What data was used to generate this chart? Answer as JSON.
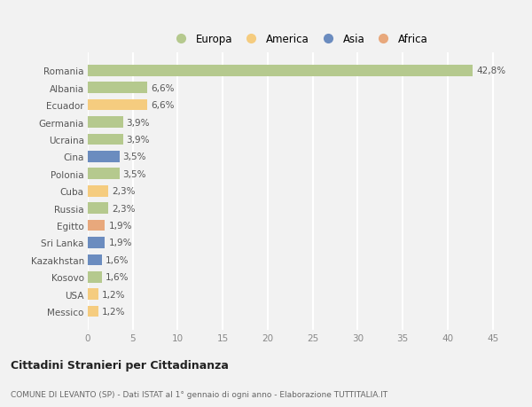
{
  "countries": [
    "Romania",
    "Albania",
    "Ecuador",
    "Germania",
    "Ucraina",
    "Cina",
    "Polonia",
    "Cuba",
    "Russia",
    "Egitto",
    "Sri Lanka",
    "Kazakhstan",
    "Kosovo",
    "USA",
    "Messico"
  ],
  "values": [
    42.8,
    6.6,
    6.6,
    3.9,
    3.9,
    3.5,
    3.5,
    2.3,
    2.3,
    1.9,
    1.9,
    1.6,
    1.6,
    1.2,
    1.2
  ],
  "labels": [
    "42,8%",
    "6,6%",
    "6,6%",
    "3,9%",
    "3,9%",
    "3,5%",
    "3,5%",
    "2,3%",
    "2,3%",
    "1,9%",
    "1,9%",
    "1,6%",
    "1,6%",
    "1,2%",
    "1,2%"
  ],
  "continents": [
    "Europa",
    "Europa",
    "America",
    "Europa",
    "Europa",
    "Asia",
    "Europa",
    "America",
    "Europa",
    "Africa",
    "Asia",
    "Asia",
    "Europa",
    "America",
    "America"
  ],
  "continent_colors": {
    "Europa": "#b5c98e",
    "America": "#f5cc7f",
    "Asia": "#6b8cbf",
    "Africa": "#e8a87c"
  },
  "legend_order": [
    "Europa",
    "America",
    "Asia",
    "Africa"
  ],
  "title": "Cittadini Stranieri per Cittadinanza",
  "subtitle": "COMUNE DI LEVANTO (SP) - Dati ISTAT al 1° gennaio di ogni anno - Elaborazione TUTTITALIA.IT",
  "xlim": [
    0,
    47
  ],
  "xticks": [
    0,
    5,
    10,
    15,
    20,
    25,
    30,
    35,
    40,
    45
  ],
  "background_color": "#f2f2f2",
  "grid_color": "#ffffff",
  "bar_height": 0.65,
  "label_fontsize": 7.5,
  "ytick_fontsize": 7.5,
  "xtick_fontsize": 7.5
}
